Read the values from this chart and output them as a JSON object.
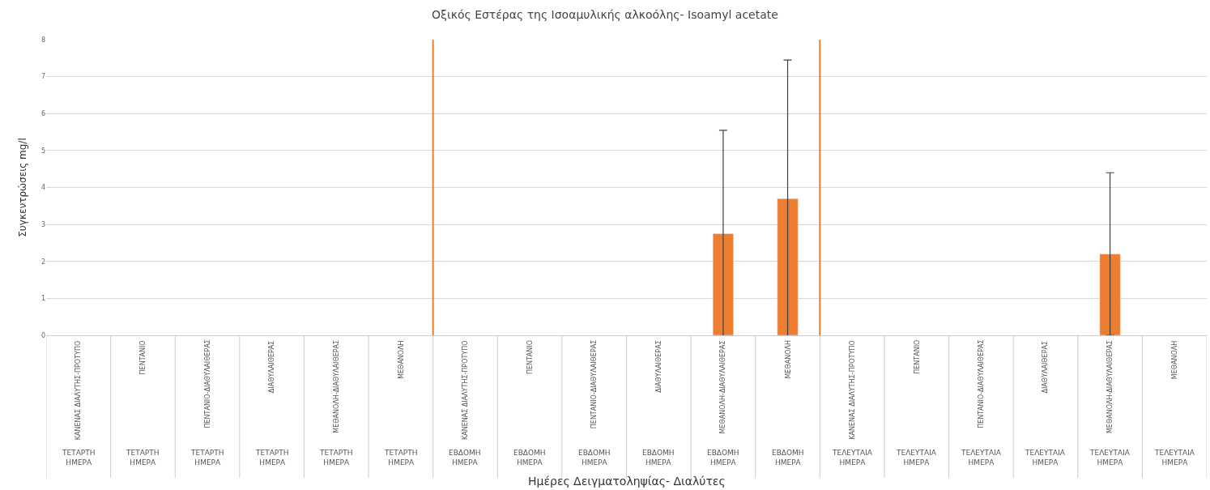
{
  "chart_data": {
    "type": "bar",
    "title": "Οξικός Εστέρας της Ισοαμυλικής αλκοόλης- Isoamyl acetate",
    "annotations": [
      "Ημέρες Δειγματοληψίας- Διαλύτες"
    ],
    "ylabel": "Συγκεντρώσεις mg/l",
    "categories": [
      "ΚΑΝΕΝΑΣ ΔΙΑΛΥΤΗΣ-ΠΡΟΤΥΠΟ\nΤΕΤΑΡΤΗ\nΗΜΕΡΑ",
      "ΠΕΝΤΑΝΙΟ\nΤΕΤΑΡΤΗ\nΗΜΕΡΑ",
      "ΠΕΝΤΑΝΙΟ-ΔΙΑΘΥΛΑΙΘΕΡΑΣ\nΤΕΤΑΡΤΗ\nΗΜΕΡΑ",
      "ΔΙΑΘΥΛΑΙΘΕΡΑΣ\nΤΕΤΑΡΤΗ\nΗΜΕΡΑ",
      "ΜΕΘΑΝΟΛΗ-ΔΙΑΘΥΛΑΙΘΕΡΑΣ\nΤΕΤΑΡΤΗ\nΗΜΕΡΑ",
      "ΜΕΘΑΝΟΛΗ\nΤΕΤΑΡΤΗ\nΗΜΕΡΑ",
      "ΚΑΝΕΝΑΣ ΔΙΑΛΥΤΗΣ-ΠΡΟΤΥΠΟ\nΕΒΔΟΜΗ\nΗΜΕΡΑ",
      "ΠΕΝΤΑΝΙΟ\nΕΒΔΟΜΗ\nΗΜΕΡΑ",
      "ΠΕΝΤΑΝΙΟ-ΔΙΑΘΥΛΑΙΘΕΡΑΣ\nΕΒΔΟΜΗ\nΗΜΕΡΑ",
      "ΔΙΑΘΥΛΑΙΘΕΡΑΣ\nΕΒΔΟΜΗ\nΗΜΕΡΑ",
      "ΜΕΘΑΝΟΛΗ-ΔΙΑΘΥΛΑΙΘΕΡΑΣ\nΕΒΔΟΜΗ\nΗΜΕΡΑ",
      "ΜΕΘΑΝΟΛΗ\nΕΒΔΟΜΗ\nΗΜΕΡΑ",
      "ΚΑΝΕΝΑΣ ΔΙΑΛΥΤΗΣ-ΠΡΟΤΥΠΟ\nΤΕΛΕΥΤΑΙΑ\nΗΜΕΡΑ",
      "ΠΕΝΤΑΝΙΟ\nΤΕΛΕΥΤΑΙΑ\nΗΜΕΡΑ",
      "ΠΕΝΤΑΝΙΟ-ΔΙΑΘΥΛΑΙΘΕΡΑΣ\nΤΕΛΕΥΤΑΙΑ\nΗΜΕΡΑ",
      "ΔΙΑΘΥΛΑΙΘΕΡΑΣ\nΤΕΛΕΥΤΑΙΑ\nΗΜΕΡΑ",
      "ΜΕΘΑΝΟΛΗ-ΔΙΑΘΥΛΑΙΘΕΡΑΣ\nΤΕΛΕΥΤΑΙΑ\nΗΜΕΡΑ",
      "ΜΕΘΑΝΟΛΗ\nΤΕΛΕΥΤΑΙΑ\nΗΜΕΡΑ"
    ],
    "values": [
      null,
      null,
      null,
      null,
      null,
      null,
      null,
      null,
      null,
      null,
      2.75,
      3.7,
      null,
      null,
      null,
      null,
      2.2,
      null
    ],
    "errors": [
      null,
      null,
      null,
      null,
      null,
      null,
      null,
      null,
      null,
      null,
      2.8,
      3.75,
      null,
      null,
      null,
      null,
      2.2,
      null
    ],
    "color": "#ed7d31",
    "ylim": [
      0,
      8
    ],
    "yticks": [
      0,
      1,
      2,
      3,
      4,
      5,
      6,
      7,
      8
    ],
    "grid": "y",
    "legend": false
  }
}
